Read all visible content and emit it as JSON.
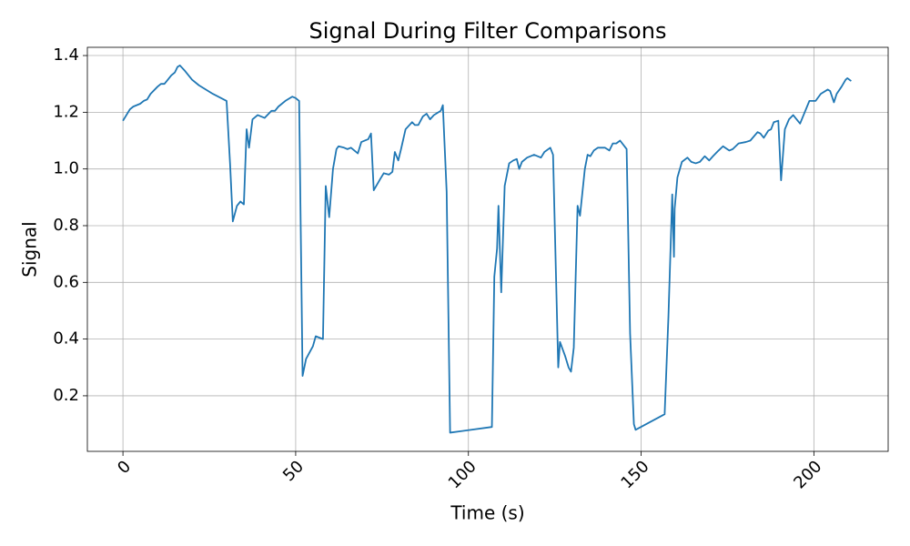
{
  "chart_data": {
    "type": "line",
    "title": "Signal During Filter Comparisons",
    "x_label": "Time (s)",
    "y_label": "Signal",
    "xlim": [
      -10.3,
      221.5
    ],
    "ylim": [
      0.004,
      1.429
    ],
    "xticks": [
      0,
      50,
      100,
      150,
      200
    ],
    "yticks": [
      0.2,
      0.4,
      0.6,
      0.8,
      {
        "value": 1.0,
        "label": "1.0"
      },
      1.2,
      1.4
    ],
    "grid": true,
    "x": [
      0,
      2,
      3,
      5,
      6,
      7,
      8,
      10,
      11,
      12,
      13,
      14,
      15,
      15.8,
      16.5,
      18,
      20,
      22,
      26,
      30,
      31,
      31.8,
      33,
      34,
      35,
      35.8,
      36.5,
      37.5,
      39,
      41,
      43,
      44,
      45,
      47,
      49,
      50,
      51,
      52,
      53,
      55,
      55.8,
      57.9,
      58.7,
      59.7,
      60.8,
      61.8,
      62.4,
      64,
      65,
      66,
      68,
      69,
      71,
      71.8,
      72.6,
      74.5,
      75.5,
      77,
      78,
      78.7,
      79.7,
      80.5,
      81.8,
      83.7,
      84.5,
      85.5,
      86.8,
      87.9,
      88.9,
      90,
      92,
      92.6,
      93.7,
      94.7,
      106.8,
      107.5,
      108.3,
      108.7,
      109.5,
      110.5,
      111.8,
      113,
      114,
      114.7,
      115.5,
      117,
      119,
      121,
      122,
      123.7,
      124.5,
      126,
      126.5,
      128,
      129,
      129.7,
      130.5,
      131.6,
      132.3,
      133.7,
      134.5,
      135.3,
      136.3,
      137.5,
      139.5,
      140.8,
      141.8,
      142.8,
      143.9,
      145.8,
      146.8,
      147.9,
      148.4,
      156.8,
      157.9,
      159,
      159.5,
      159.7,
      160.5,
      161.8,
      163.4,
      164.5,
      165.8,
      167,
      168.4,
      169.7,
      170.8,
      172.4,
      173.7,
      175.5,
      176.5,
      178.2,
      180.3,
      181.6,
      183.7,
      184.5,
      185.5,
      186.8,
      187.6,
      188.4,
      189.7,
      190.5,
      191.6,
      192.8,
      194,
      196,
      198.7,
      200.5,
      202,
      204,
      204.7,
      205.8,
      206.6,
      208,
      209.2,
      209.7,
      210.8
    ],
    "series": [
      {
        "name": "Signal",
        "color": "#1f77b4",
        "values": [
          1.17,
          1.21,
          1.22,
          1.23,
          1.24,
          1.245,
          1.265,
          1.29,
          1.3,
          1.3,
          1.315,
          1.33,
          1.34,
          1.36,
          1.365,
          1.345,
          1.315,
          1.295,
          1.265,
          1.24,
          1.02,
          0.815,
          0.87,
          0.885,
          0.875,
          1.14,
          1.075,
          1.175,
          1.19,
          1.18,
          1.205,
          1.205,
          1.22,
          1.24,
          1.255,
          1.25,
          1.24,
          0.27,
          0.33,
          0.375,
          0.41,
          0.4,
          0.94,
          0.83,
          1.0,
          1.07,
          1.08,
          1.075,
          1.07,
          1.075,
          1.055,
          1.095,
          1.105,
          1.125,
          0.925,
          0.965,
          0.985,
          0.98,
          0.99,
          1.06,
          1.03,
          1.07,
          1.14,
          1.165,
          1.155,
          1.155,
          1.185,
          1.195,
          1.175,
          1.19,
          1.205,
          1.225,
          0.92,
          0.07,
          0.09,
          0.62,
          0.72,
          0.87,
          0.565,
          0.94,
          1.02,
          1.03,
          1.035,
          1.0,
          1.025,
          1.04,
          1.05,
          1.04,
          1.06,
          1.075,
          1.05,
          0.3,
          0.39,
          0.34,
          0.3,
          0.285,
          0.37,
          0.87,
          0.835,
          1.0,
          1.05,
          1.045,
          1.065,
          1.075,
          1.075,
          1.065,
          1.09,
          1.09,
          1.1,
          1.07,
          0.42,
          0.1,
          0.08,
          0.135,
          0.48,
          0.91,
          0.69,
          0.86,
          0.97,
          1.025,
          1.04,
          1.025,
          1.02,
          1.025,
          1.045,
          1.03,
          1.045,
          1.065,
          1.08,
          1.065,
          1.07,
          1.09,
          1.095,
          1.1,
          1.13,
          1.125,
          1.11,
          1.135,
          1.14,
          1.165,
          1.17,
          0.96,
          1.14,
          1.175,
          1.19,
          1.16,
          1.24,
          1.24,
          1.265,
          1.28,
          1.275,
          1.235,
          1.265,
          1.29,
          1.315,
          1.32,
          1.31
        ]
      }
    ]
  }
}
